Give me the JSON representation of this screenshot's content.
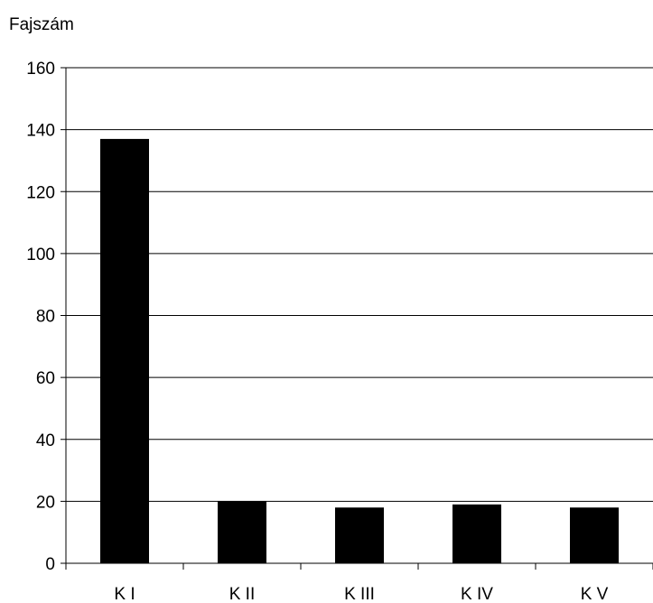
{
  "chart_data": {
    "type": "bar",
    "ylabel": "Fajszám",
    "categories": [
      "K I",
      "K II",
      "K III",
      "K IV",
      "K V"
    ],
    "values": [
      137,
      20,
      18,
      19,
      18
    ],
    "ylim": [
      0,
      160
    ],
    "yticks": [
      0,
      20,
      40,
      60,
      80,
      100,
      120,
      140,
      160
    ],
    "grid": true,
    "legend": "none",
    "bar_color": "#000000",
    "grid_color": "#000000"
  }
}
